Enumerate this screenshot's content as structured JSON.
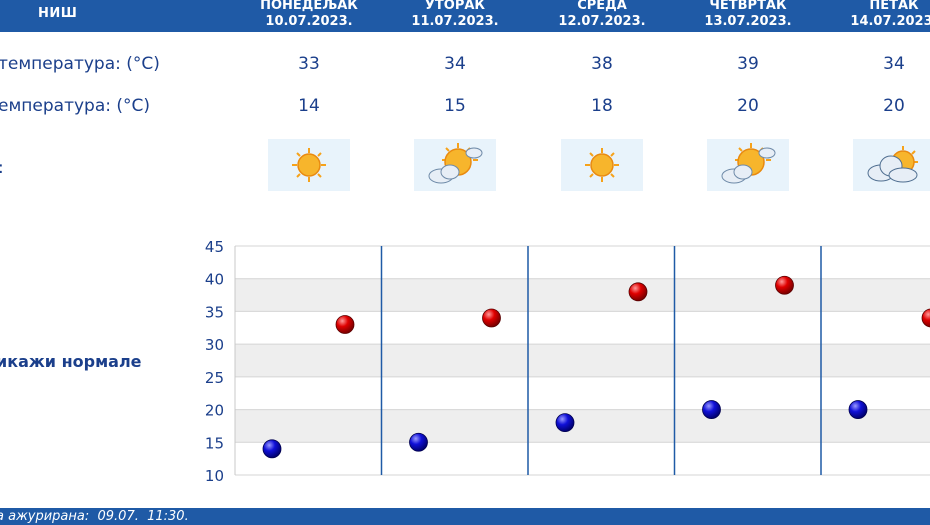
{
  "header": {
    "city": "НИШ",
    "days": [
      {
        "name": "ПОНЕДЕЉАК",
        "date": "10.07.2023."
      },
      {
        "name": "УТОРАК",
        "date": "11.07.2023."
      },
      {
        "name": "СРЕДА",
        "date": "12.07.2023."
      },
      {
        "name": "ЧЕТВРТАК",
        "date": "13.07.2023."
      },
      {
        "name": "ПЕТАК",
        "date": "14.07.2023."
      }
    ]
  },
  "table": {
    "max_label": "температура: (°C)",
    "min_label": "емпература: (°C)",
    "icon_label": ":",
    "max_values": [
      "33",
      "34",
      "38",
      "39",
      "34"
    ],
    "min_values": [
      "14",
      "15",
      "18",
      "20",
      "20"
    ],
    "icons": [
      "sun-icon",
      "sun-cloud-icon",
      "sun-icon",
      "sun-cloud-icon",
      "cloud-sun-icon"
    ]
  },
  "legend": {
    "toggle_label": "икажи нормале"
  },
  "footer": {
    "updated_text": "а ажурирана:  09.07.  11:30."
  },
  "chart_data": {
    "type": "scatter",
    "categories": [
      "ПОНЕДЕЉАК",
      "УТОРАК",
      "СРЕДА",
      "ЧЕТВРТАК",
      "ПЕТАК"
    ],
    "series": [
      {
        "values": [
          33,
          34,
          38,
          39,
          34
        ],
        "color": "#d10000"
      },
      {
        "values": [
          14,
          15,
          18,
          20,
          20
        ],
        "color": "#0a0ac8"
      }
    ],
    "yticks": [
      "45",
      "40",
      "35",
      "30",
      "25",
      "20",
      "15",
      "10"
    ],
    "ylim": [
      10,
      45
    ],
    "grid": true
  }
}
